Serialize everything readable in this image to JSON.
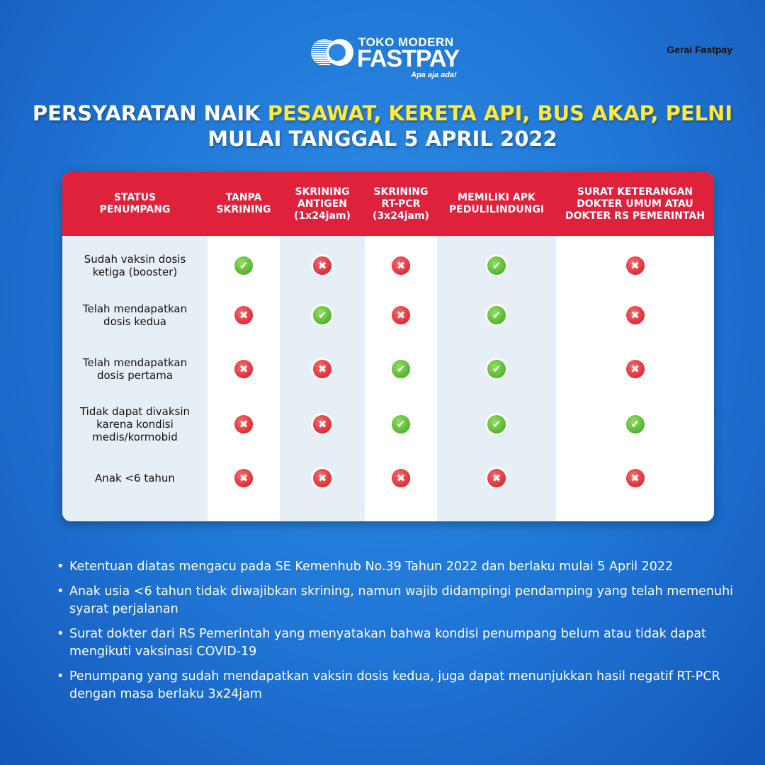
{
  "brand_label": "Gerai Fastpay",
  "logo": {
    "line1": "TOKO MODERN",
    "line2": "FASTPAY",
    "tagline": "Apa aja ada!"
  },
  "title": {
    "part1": "PERSYARATAN NAIK ",
    "highlight": "PESAWAT, KERETA API, BUS AKAP, PELNI",
    "line2": "MULAI TANGGAL 5 APRIL 2022"
  },
  "colors": {
    "header_red": "#e0213b",
    "highlight_yellow": "#ffe93a",
    "check_green": "#3aa321",
    "cross_red": "#d0141e"
  },
  "table": {
    "columns": [
      "STATUS\nPENUMPANG",
      "TANPA\nSKRINING",
      "SKRINING\nANTIGEN\n(1x24jam)",
      "SKRINING\nRT-PCR\n(3x24jam)",
      "MEMILIKI APK\nPEDULILINDUNGI",
      "SURAT KETERANGAN\nDOKTER UMUM ATAU\nDOKTER RS PEMERINTAH"
    ],
    "rows": [
      {
        "status": "Sudah vaksin dosis\nketiga (booster)",
        "values": [
          "check",
          "cross",
          "cross",
          "check",
          "cross"
        ]
      },
      {
        "status": "Telah mendapatkan\ndosis kedua",
        "values": [
          "cross",
          "check",
          "cross",
          "check",
          "cross"
        ]
      },
      {
        "status": "Telah mendapatkan\ndosis pertama",
        "values": [
          "cross",
          "cross",
          "check",
          "check",
          "cross"
        ]
      },
      {
        "status": "Tidak dapat divaksin\nkarena kondisi\nmedis/kormobid",
        "values": [
          "cross",
          "cross",
          "check",
          "check",
          "check"
        ]
      },
      {
        "status": "Anak <6 tahun",
        "values": [
          "cross",
          "cross",
          "cross",
          "cross",
          "cross"
        ]
      }
    ]
  },
  "notes": [
    "Ketentuan diatas mengacu pada SE Kemenhub No.39 Tahun 2022 dan berlaku mulai 5 April 2022",
    "Anak usia <6 tahun tidak diwajibkan skrining, namun wajib didampingi pendamping yang telah memenuhi syarat perjalanan",
    "Surat dokter dari RS Pemerintah yang menyatakan bahwa kondisi penumpang belum atau tidak dapat mengikuti vaksinasi COVID-19",
    "Penumpang yang sudah mendapatkan vaksin dosis kedua, juga dapat menunjukkan hasil negatif RT-PCR dengan masa berlaku 3x24jam"
  ]
}
